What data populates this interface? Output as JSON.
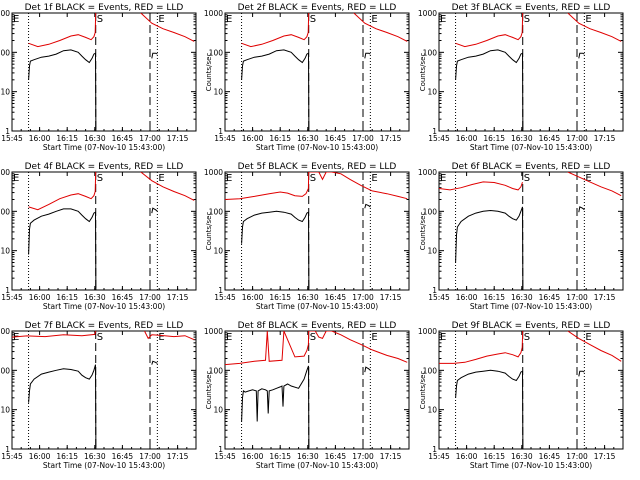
{
  "figure": {
    "title_template": "Det {d} BLACK = Events, RED = LLD",
    "colors": {
      "events": "#000000",
      "lld": "#e00000",
      "axes": "#000000",
      "background": "#ffffff"
    }
  },
  "chart_data": {
    "type": "line",
    "layout": "3x3 grid",
    "xlabel": "Start Time (07-Nov-10 15:43:00)",
    "ylabel": "Counts/sec",
    "y_scale": "log",
    "ylim": [
      1,
      1000
    ],
    "y_ticks": [
      1,
      10,
      100,
      1000
    ],
    "y_tick_labels": [
      "1",
      "10",
      "100",
      "1000"
    ],
    "x_unit": "minutes since 15:43:00",
    "xlim": [
      2,
      102
    ],
    "x_ticks": [
      2,
      17,
      32,
      47,
      62,
      77,
      92
    ],
    "x_tick_labels": [
      "15:45",
      "16:00",
      "16:15",
      "16:30",
      "16:45",
      "17:00",
      "17:15"
    ],
    "series_legend": [
      {
        "name": "Events",
        "color": "black"
      },
      {
        "name": "LLD",
        "color": "red"
      }
    ],
    "event_marks": [
      {
        "label": "E",
        "x": 2,
        "line": "none"
      },
      {
        "label": "",
        "x": 11,
        "line": "dotted"
      },
      {
        "label": "S",
        "x": 47.5,
        "line": "dashed"
      },
      {
        "label": "",
        "x": 77,
        "line": "dashed"
      },
      {
        "label": "E",
        "x": 81,
        "line": "dotted"
      }
    ],
    "panels": [
      {
        "detector": "1f",
        "events": {
          "x": [
            11,
            11.5,
            12,
            14,
            18,
            22,
            26,
            30,
            34,
            38,
            40,
            42,
            44,
            45.5,
            46.5,
            47.4,
            47.6,
            48.2,
            78,
            78.5,
            80,
            81
          ],
          "y": [
            20,
            45,
            60,
            65,
            75,
            80,
            90,
            110,
            115,
            100,
            80,
            65,
            55,
            70,
            90,
            95,
            1,
            null,
            70,
            95,
            95,
            90
          ]
        },
        "lld": {
          "x": [
            11,
            16,
            22,
            28,
            34,
            38,
            42,
            45,
            46.5,
            47.2,
            47.5,
            47.8,
            72,
            78,
            84,
            90,
            96,
            101
          ],
          "y": [
            170,
            140,
            160,
            200,
            260,
            280,
            240,
            210,
            250,
            320,
            1000,
            null,
            1000,
            550,
            400,
            320,
            250,
            190
          ]
        }
      },
      {
        "detector": "2f",
        "events": {
          "x": [
            11,
            11.5,
            12,
            14,
            18,
            22,
            26,
            30,
            34,
            38,
            40,
            42,
            44,
            45.5,
            46.5,
            47.4,
            47.6,
            48.2,
            78,
            78.5,
            80,
            81
          ],
          "y": [
            20,
            45,
            60,
            65,
            75,
            80,
            90,
            110,
            115,
            100,
            80,
            65,
            55,
            70,
            90,
            95,
            1,
            null,
            70,
            95,
            95,
            90
          ]
        },
        "lld": {
          "x": [
            11,
            16,
            22,
            28,
            34,
            38,
            42,
            45,
            46.5,
            47.2,
            47.5,
            47.8,
            72,
            78,
            84,
            90,
            96,
            101
          ],
          "y": [
            170,
            140,
            160,
            200,
            260,
            280,
            240,
            210,
            250,
            320,
            1000,
            null,
            1000,
            550,
            400,
            320,
            250,
            190
          ]
        }
      },
      {
        "detector": "3f",
        "events": {
          "x": [
            11,
            11.5,
            12,
            14,
            18,
            22,
            26,
            30,
            34,
            38,
            40,
            42,
            44,
            45.5,
            46.5,
            47.4,
            47.6,
            48.2,
            78,
            78.5,
            80,
            81
          ],
          "y": [
            20,
            45,
            60,
            65,
            75,
            80,
            90,
            110,
            115,
            100,
            80,
            65,
            55,
            70,
            90,
            95,
            1,
            null,
            70,
            95,
            95,
            90
          ]
        },
        "lld": {
          "x": [
            11,
            16,
            22,
            28,
            34,
            38,
            42,
            45,
            46.5,
            47.2,
            47.5,
            47.8,
            72,
            78,
            84,
            90,
            96,
            101
          ],
          "y": [
            170,
            140,
            160,
            200,
            260,
            280,
            240,
            210,
            250,
            320,
            1000,
            null,
            1000,
            550,
            400,
            320,
            250,
            190
          ]
        }
      },
      {
        "detector": "4f",
        "events": {
          "x": [
            11,
            11.5,
            12,
            14,
            18,
            22,
            26,
            30,
            34,
            38,
            40,
            42,
            44,
            45.5,
            46.5,
            47.4,
            47.6,
            48.2,
            78,
            78.5,
            80,
            81
          ],
          "y": [
            8,
            35,
            50,
            60,
            75,
            85,
            100,
            115,
            115,
            100,
            80,
            65,
            55,
            70,
            90,
            95,
            1,
            null,
            90,
            120,
            110,
            100
          ]
        },
        "lld": {
          "x": [
            11,
            16,
            22,
            28,
            34,
            38,
            42,
            45,
            46.5,
            47.2,
            47.5,
            47.8,
            72,
            78,
            84,
            90,
            96,
            101
          ],
          "y": [
            130,
            110,
            150,
            210,
            260,
            280,
            240,
            210,
            250,
            320,
            1000,
            null,
            1000,
            600,
            420,
            320,
            250,
            190
          ]
        }
      },
      {
        "detector": "5f",
        "events": {
          "x": [
            11,
            11.5,
            12,
            14,
            18,
            22,
            26,
            30,
            34,
            38,
            40,
            42,
            44,
            45.5,
            46.5,
            47.4,
            47.6,
            48.2,
            78,
            78.5,
            80,
            81
          ],
          "y": [
            15,
            40,
            55,
            65,
            80,
            90,
            95,
            100,
            95,
            85,
            70,
            60,
            55,
            70,
            90,
            95,
            1,
            null,
            120,
            150,
            140,
            130
          ]
        },
        "lld": {
          "x": [
            2,
            10,
            18,
            26,
            32,
            36,
            40,
            44,
            46,
            47.3,
            47.5,
            53,
            55,
            57,
            60,
            65,
            70,
            76,
            82,
            90,
            96,
            101
          ],
          "y": [
            200,
            210,
            240,
            280,
            310,
            290,
            250,
            240,
            280,
            380,
            1000,
            1000,
            650,
            1000,
            1000,
            900,
            650,
            450,
            330,
            280,
            240,
            210
          ]
        }
      },
      {
        "detector": "6f",
        "events": {
          "x": [
            11,
            11.5,
            12,
            14,
            18,
            22,
            26,
            30,
            34,
            38,
            40,
            42,
            44,
            45.5,
            46.5,
            47.4,
            47.6,
            48.2,
            78,
            78.5,
            80,
            81
          ],
          "y": [
            5,
            25,
            40,
            55,
            75,
            90,
            100,
            105,
            100,
            90,
            75,
            65,
            60,
            75,
            100,
            130,
            1,
            null,
            95,
            130,
            120,
            110
          ]
        },
        "lld": {
          "x": [
            2,
            8,
            14,
            20,
            26,
            32,
            38,
            42,
            45,
            46.5,
            47.4,
            47.6,
            72,
            78,
            84,
            90,
            96,
            101
          ],
          "y": [
            380,
            350,
            400,
            480,
            560,
            540,
            460,
            380,
            350,
            420,
            550,
            null,
            1000,
            750,
            560,
            420,
            330,
            250
          ]
        }
      },
      {
        "detector": "7f",
        "events": {
          "x": [
            11,
            11.5,
            12,
            14,
            18,
            22,
            26,
            30,
            34,
            38,
            40,
            42,
            44,
            45.5,
            46.5,
            47.4,
            47.6,
            48.2,
            78,
            78.5,
            80,
            81
          ],
          "y": [
            15,
            30,
            45,
            60,
            80,
            90,
            100,
            110,
            105,
            95,
            75,
            65,
            60,
            75,
            100,
            140,
            1,
            null,
            140,
            170,
            160,
            150
          ]
        },
        "lld": {
          "x": [
            2,
            10,
            20,
            30,
            40,
            47,
            47.5,
            52,
            60,
            70,
            74,
            76,
            78,
            82,
            90,
            96,
            101
          ],
          "y": [
            700,
            750,
            720,
            800,
            760,
            820,
            1000,
            null,
            null,
            null,
            1000,
            650,
            800,
            780,
            720,
            760,
            600
          ]
        }
      },
      {
        "detector": "8f",
        "events": {
          "x": [
            11,
            11.5,
            12,
            13,
            15,
            17,
            19,
            19.5,
            20,
            22,
            24,
            25,
            25.5,
            26,
            28,
            30,
            32,
            33,
            33.5,
            34,
            36,
            38,
            42,
            45,
            46.5,
            47.4,
            47.6,
            48.2,
            78,
            78.5,
            80,
            81
          ],
          "y": [
            5,
            20,
            30,
            28,
            30,
            32,
            30,
            5,
            30,
            34,
            32,
            30,
            8,
            30,
            32,
            35,
            38,
            40,
            12,
            40,
            45,
            40,
            35,
            60,
            100,
            130,
            1,
            null,
            90,
            120,
            110,
            100
          ]
        },
        "lld": {
          "x": [
            2,
            10,
            18,
            24,
            25,
            26,
            33,
            34,
            40,
            45,
            46.5,
            47.3,
            47.5,
            49,
            51,
            53,
            55,
            57,
            60,
            65,
            70,
            76,
            82,
            90,
            96,
            101
          ],
          "y": [
            140,
            150,
            170,
            180,
            1000,
            170,
            180,
            1000,
            220,
            230,
            320,
            450,
            1000,
            1000,
            1000,
            700,
            650,
            1000,
            1000,
            800,
            600,
            450,
            330,
            240,
            200,
            160
          ]
        }
      },
      {
        "detector": "9f",
        "events": {
          "x": [
            11,
            11.5,
            12,
            14,
            18,
            22,
            26,
            30,
            34,
            38,
            40,
            42,
            44,
            45.5,
            46.5,
            47.4,
            47.6,
            48.2,
            78,
            78.5,
            80,
            81
          ],
          "y": [
            20,
            40,
            55,
            65,
            80,
            90,
            95,
            100,
            95,
            85,
            70,
            60,
            55,
            70,
            90,
            95,
            1,
            null,
            70,
            95,
            95,
            90
          ]
        },
        "lld": {
          "x": [
            2,
            10,
            16,
            22,
            28,
            34,
            38,
            42,
            45,
            46.5,
            47.2,
            47.5,
            47.8,
            72,
            78,
            84,
            90,
            96,
            101
          ],
          "y": [
            150,
            150,
            160,
            190,
            230,
            260,
            280,
            250,
            220,
            280,
            380,
            1000,
            null,
            1000,
            650,
            450,
            320,
            240,
            170
          ]
        }
      }
    ]
  }
}
